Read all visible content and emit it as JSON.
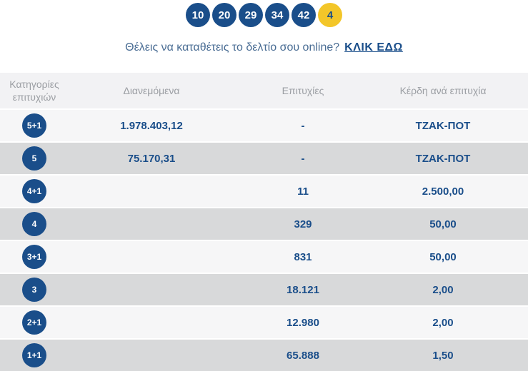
{
  "draw": {
    "numbers": [
      "10",
      "20",
      "29",
      "34",
      "42"
    ],
    "bonus": "4"
  },
  "cta": {
    "text": "Θέλεις να καταθέτεις το δελτίο σου online?",
    "link_label": "ΚΛΙΚ ΕΔΩ"
  },
  "table": {
    "headers": [
      "Κατηγορίες επιτυχιών",
      "Διανεμόμενα",
      "Επιτυχίες",
      "Κέρδη ανά επιτυχία"
    ],
    "rows": [
      {
        "category": "5+1",
        "distributed": "1.978.403,12",
        "wins": "-",
        "prize": "ΤΖΑΚ-ΠΟΤ"
      },
      {
        "category": "5",
        "distributed": "75.170,31",
        "wins": "-",
        "prize": "ΤΖΑΚ-ΠΟΤ"
      },
      {
        "category": "4+1",
        "distributed": "",
        "wins": "11",
        "prize": "2.500,00"
      },
      {
        "category": "4",
        "distributed": "",
        "wins": "329",
        "prize": "50,00"
      },
      {
        "category": "3+1",
        "distributed": "",
        "wins": "831",
        "prize": "50,00"
      },
      {
        "category": "3",
        "distributed": "",
        "wins": "18.121",
        "prize": "2,00"
      },
      {
        "category": "2+1",
        "distributed": "",
        "wins": "12.980",
        "prize": "2,00"
      },
      {
        "category": "1+1",
        "distributed": "",
        "wins": "65.888",
        "prize": "1,50"
      }
    ]
  },
  "colors": {
    "navy": "#1a4e8a",
    "bonus_yellow": "#f3c629",
    "header_text_gray": "#9b9ea3",
    "row_light": "#f6f6f7",
    "row_dark": "#d8d9da"
  }
}
